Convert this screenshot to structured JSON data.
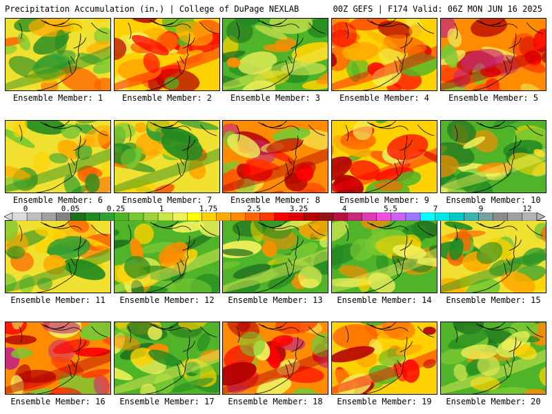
{
  "header": {
    "title_left": "Precipitation Accumulation (in.) | College of DuPage NEXLAB",
    "title_right": "00Z GEFS | F174 Valid: 06Z MON JUN 16 2025"
  },
  "member_label_prefix": "Ensemble Member: ",
  "members": [
    {
      "number": "1",
      "tone": 0
    },
    {
      "number": "2",
      "tone": 2
    },
    {
      "number": "3",
      "tone": 1
    },
    {
      "number": "4",
      "tone": 2
    },
    {
      "number": "5",
      "tone": 3
    },
    {
      "number": "6",
      "tone": 0
    },
    {
      "number": "7",
      "tone": 0
    },
    {
      "number": "8",
      "tone": 3
    },
    {
      "number": "9",
      "tone": 2
    },
    {
      "number": "10",
      "tone": 1
    },
    {
      "number": "11",
      "tone": 0
    },
    {
      "number": "12",
      "tone": 1
    },
    {
      "number": "13",
      "tone": 1
    },
    {
      "number": "14",
      "tone": 1
    },
    {
      "number": "15",
      "tone": 0
    },
    {
      "number": "16",
      "tone": 3
    },
    {
      "number": "17",
      "tone": 1
    },
    {
      "number": "18",
      "tone": 3
    },
    {
      "number": "19",
      "tone": 2
    },
    {
      "number": "20",
      "tone": 1
    }
  ],
  "colorbar": {
    "ticks": [
      "0",
      "0.05",
      "0.25",
      "1",
      "1.75",
      "2.5",
      "3.25",
      "4",
      "5.5",
      "7",
      "9",
      "12"
    ],
    "colors": [
      "#dcdcdc",
      "#bebebe",
      "#a0a0a0",
      "#828282",
      "#1e6e1e",
      "#228b22",
      "#32a032",
      "#50b428",
      "#78c832",
      "#a0d23c",
      "#c8e646",
      "#f0f05a",
      "#ffff00",
      "#ffd200",
      "#ffaa00",
      "#ff8c00",
      "#ff6400",
      "#ff3c00",
      "#ff0000",
      "#dc0000",
      "#b40000",
      "#961414",
      "#b4143c",
      "#c8287a",
      "#dc3cb4",
      "#f050dc",
      "#c864f0",
      "#a078ff",
      "#00ffff",
      "#00e6e6",
      "#00c8c8",
      "#3cb4b4",
      "#78a0a0",
      "#8c8c8c",
      "#a0a0a0",
      "#b4b4b4"
    ]
  }
}
